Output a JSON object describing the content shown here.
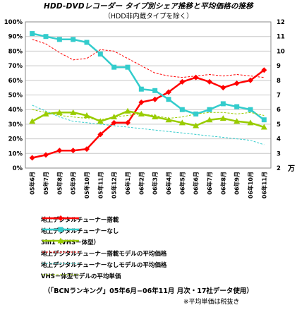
{
  "chart_data": {
    "type": "line",
    "title": "HDD-DVDレコーダー タイプ別シェア推移と平均価格の推移",
    "subtitle": "（HDD非内蔵タイプを除く）",
    "categories": [
      "05年6月",
      "05年7月",
      "05年8月",
      "05年9月",
      "05年10月",
      "05年11月",
      "05年12月",
      "06年1月",
      "06年2月",
      "06年3月",
      "06年4月",
      "06年5月",
      "06年6月",
      "06年7月",
      "06年8月",
      "06年9月",
      "06年10月",
      "06年11月"
    ],
    "y_left": {
      "ticks": [
        "0%",
        "10%",
        "20%",
        "30%",
        "40%",
        "50%",
        "60%",
        "70%",
        "80%",
        "90%",
        "100%"
      ],
      "range": [
        0,
        100
      ]
    },
    "y_right": {
      "ticks": [
        "2",
        "3",
        "4",
        "5",
        "6",
        "7",
        "8",
        "9",
        "10",
        "11",
        "12"
      ],
      "range": [
        2,
        12
      ],
      "unit": "万"
    },
    "series": [
      {
        "name": "地上デジタルチューナー搭載",
        "axis": "left",
        "color": "#ff0000",
        "marker": "diamond",
        "values": [
          7,
          9,
          12,
          12,
          13,
          23,
          31,
          31,
          45,
          47,
          52,
          59,
          62,
          59,
          55,
          58,
          60,
          67
        ]
      },
      {
        "name": "地上デジタルチューナーなし",
        "axis": "left",
        "color": "#33cccc",
        "marker": "square",
        "values": [
          92,
          90,
          88,
          88,
          86,
          78,
          69,
          69,
          54,
          53,
          47,
          40,
          37,
          40,
          44,
          42,
          40,
          33
        ]
      },
      {
        "name": "3in1（VHS－体型）",
        "axis": "left",
        "color": "#99cc00",
        "marker": "triangle",
        "values": [
          32,
          37,
          38,
          38,
          36,
          32,
          35,
          39,
          37,
          35,
          33,
          31,
          29,
          33,
          34,
          32,
          31,
          28
        ]
      },
      {
        "name": "地上デジタルチューナー搭載モデルの平均価格",
        "axis": "right",
        "color": "#ff0000",
        "dashed": true,
        "values": [
          10.8,
          10.5,
          9.9,
          9.4,
          9.5,
          10.1,
          10.0,
          9.5,
          9.0,
          8.5,
          8.3,
          8.2,
          8.3,
          8.4,
          8.3,
          8.4,
          8.3,
          8.2
        ]
      },
      {
        "name": "地上デジタルチューナーなしモデルの平均価格",
        "axis": "right",
        "color": "#33cccc",
        "dashed": true,
        "values": [
          6.3,
          5.9,
          5.5,
          5.2,
          5.1,
          5.0,
          4.9,
          4.8,
          4.7,
          4.6,
          4.5,
          4.4,
          4.3,
          4.2,
          4.1,
          4.0,
          3.9,
          3.6
        ]
      },
      {
        "name": "VHS－体型モデルの平均単価",
        "axis": "right",
        "color": "#99cc00",
        "dashed": true,
        "values": [
          6.0,
          5.8,
          5.6,
          5.5,
          5.4,
          5.3,
          5.5,
          5.6,
          5.7,
          5.6,
          5.4,
          5.5,
          5.7,
          5.8,
          5.8,
          5.7,
          5.8,
          5.6
        ]
      }
    ],
    "grid": true,
    "legend_position": "bottom"
  },
  "footnote": "（「BCNランキング」05年6月−06年11月 月次・17社データ使用）",
  "note": "※平均単価は税抜き"
}
